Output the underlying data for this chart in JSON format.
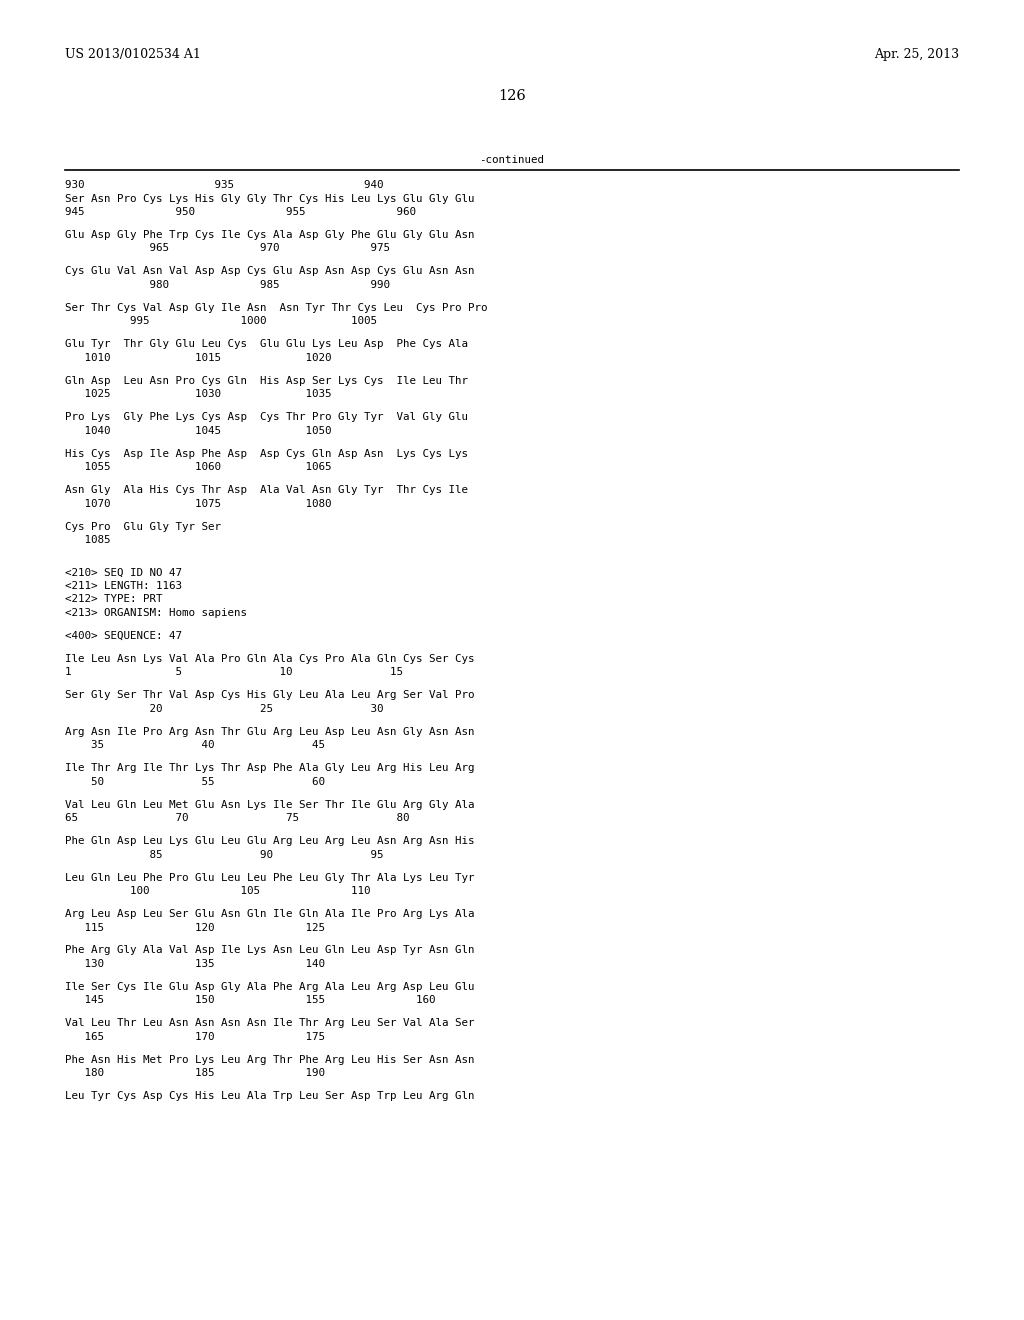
{
  "background_color": "#ffffff",
  "header_left": "US 2013/0102534 A1",
  "header_right": "Apr. 25, 2013",
  "page_number": "126",
  "continued_label": "-continued",
  "lines": [
    "930                    935                    940",
    "Ser Asn Pro Cys Lys His Gly Gly Thr Cys His Leu Lys Glu Gly Glu",
    "945              950              955              960",
    "",
    "Glu Asp Gly Phe Trp Cys Ile Cys Ala Asp Gly Phe Glu Gly Glu Asn",
    "             965              970              975",
    "",
    "Cys Glu Val Asn Val Asp Asp Cys Glu Asp Asn Asp Cys Glu Asn Asn",
    "             980              985              990",
    "",
    "Ser Thr Cys Val Asp Gly Ile Asn  Asn Tyr Thr Cys Leu  Cys Pro Pro",
    "          995              1000             1005",
    "",
    "Glu Tyr  Thr Gly Glu Leu Cys  Glu Glu Lys Leu Asp  Phe Cys Ala",
    "   1010             1015             1020",
    "",
    "Gln Asp  Leu Asn Pro Cys Gln  His Asp Ser Lys Cys  Ile Leu Thr",
    "   1025             1030             1035",
    "",
    "Pro Lys  Gly Phe Lys Cys Asp  Cys Thr Pro Gly Tyr  Val Gly Glu",
    "   1040             1045             1050",
    "",
    "His Cys  Asp Ile Asp Phe Asp  Asp Cys Gln Asp Asn  Lys Cys Lys",
    "   1055             1060             1065",
    "",
    "Asn Gly  Ala His Cys Thr Asp  Ala Val Asn Gly Tyr  Thr Cys Ile",
    "   1070             1075             1080",
    "",
    "Cys Pro  Glu Gly Tyr Ser",
    "   1085",
    "",
    "",
    "<210> SEQ ID NO 47",
    "<211> LENGTH: 1163",
    "<212> TYPE: PRT",
    "<213> ORGANISM: Homo sapiens",
    "",
    "<400> SEQUENCE: 47",
    "",
    "Ile Leu Asn Lys Val Ala Pro Gln Ala Cys Pro Ala Gln Cys Ser Cys",
    "1                5               10               15",
    "",
    "Ser Gly Ser Thr Val Asp Cys His Gly Leu Ala Leu Arg Ser Val Pro",
    "             20               25               30",
    "",
    "Arg Asn Ile Pro Arg Asn Thr Glu Arg Leu Asp Leu Asn Gly Asn Asn",
    "    35               40               45",
    "",
    "Ile Thr Arg Ile Thr Lys Thr Asp Phe Ala Gly Leu Arg His Leu Arg",
    "    50               55               60",
    "",
    "Val Leu Gln Leu Met Glu Asn Lys Ile Ser Thr Ile Glu Arg Gly Ala",
    "65               70               75               80",
    "",
    "Phe Gln Asp Leu Lys Glu Leu Glu Arg Leu Arg Leu Asn Arg Asn His",
    "             85               90               95",
    "",
    "Leu Gln Leu Phe Pro Glu Leu Leu Phe Leu Gly Thr Ala Lys Leu Tyr",
    "          100              105              110",
    "",
    "Arg Leu Asp Leu Ser Glu Asn Gln Ile Gln Ala Ile Pro Arg Lys Ala",
    "   115              120              125",
    "",
    "Phe Arg Gly Ala Val Asp Ile Lys Asn Leu Gln Leu Asp Tyr Asn Gln",
    "   130              135              140",
    "",
    "Ile Ser Cys Ile Glu Asp Gly Ala Phe Arg Ala Leu Arg Asp Leu Glu",
    "   145              150              155              160",
    "",
    "Val Leu Thr Leu Asn Asn Asn Asn Ile Thr Arg Leu Ser Val Ala Ser",
    "   165              170              175",
    "",
    "Phe Asn His Met Pro Lys Leu Arg Thr Phe Arg Leu His Ser Asn Asn",
    "   180              185              190",
    "",
    "Leu Tyr Cys Asp Cys His Leu Ala Trp Leu Ser Asp Trp Leu Arg Gln"
  ]
}
